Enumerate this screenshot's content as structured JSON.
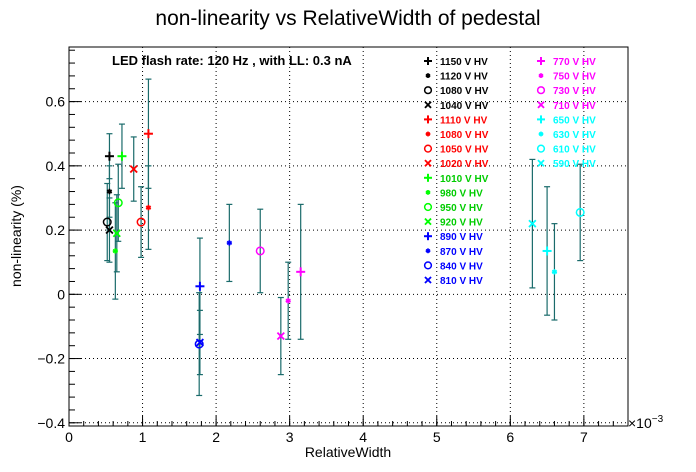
{
  "chart_data": {
    "type": "scatter",
    "title": "non-linearity vs RelativeWidth of pedestal",
    "xlabel": "RelativeWidth",
    "ylabel": "non-linearity (%)",
    "x_multiplier_label": "×10",
    "x_multiplier_exp": "−3",
    "xlim": [
      0,
      0.0076
    ],
    "ylim": [
      -0.41,
      0.77
    ],
    "x_ticks": [
      0,
      0.001,
      0.002,
      0.003,
      0.004,
      0.005,
      0.006,
      0.007
    ],
    "x_tick_labels": [
      "0",
      "1",
      "2",
      "3",
      "4",
      "5",
      "6",
      "7"
    ],
    "y_ticks": [
      -0.4,
      -0.2,
      0,
      0.2,
      0.4,
      0.6
    ],
    "y_tick_labels": [
      "−0.4",
      "−0.2",
      "0",
      "0.2",
      "0.4",
      "0.6"
    ],
    "grid": true,
    "annotation": "LED flash rate: 120 Hz , with LL: 0.3 nA",
    "error_bar_color": "#1a6b6b",
    "series": [
      {
        "name": "1150 V HV",
        "color": "#000000",
        "marker": "+",
        "x": 0.00055,
        "y": 0.43,
        "err": 0.07
      },
      {
        "name": "1120 V HV",
        "color": "#000000",
        "marker": "*",
        "x": 0.00055,
        "y": 0.32,
        "err": 0.08
      },
      {
        "name": "1080 V HV",
        "color": "#000000",
        "marker": "o",
        "x": 0.00052,
        "y": 0.225,
        "err": 0.12
      },
      {
        "name": "1040 V HV",
        "color": "#000000",
        "marker": "x",
        "x": 0.00055,
        "y": 0.2,
        "err": 0.1
      },
      {
        "name": "1110 V HV",
        "color": "#ff0000",
        "marker": "+",
        "x": 0.00108,
        "y": 0.5,
        "err": 0.17
      },
      {
        "name": "1080 V HV",
        "color": "#ff0000",
        "marker": "*",
        "x": 0.00108,
        "y": 0.27,
        "err": 0.13
      },
      {
        "name": "1050 V HV",
        "color": "#ff0000",
        "marker": "o",
        "x": 0.00098,
        "y": 0.225,
        "err": 0.11
      },
      {
        "name": "1020 V HV",
        "color": "#ff0000",
        "marker": "x",
        "x": 0.00088,
        "y": 0.39,
        "err": 0.1
      },
      {
        "name": "1010 V HV",
        "color": "#00ff00",
        "marker": "+",
        "x": 0.00072,
        "y": 0.43,
        "err": 0.1
      },
      {
        "name": "980 V HV",
        "color": "#00ff00",
        "marker": "*",
        "x": 0.00063,
        "y": 0.135,
        "err": 0.15
      },
      {
        "name": "950 V HV",
        "color": "#00ff00",
        "marker": "o",
        "x": 0.00067,
        "y": 0.285,
        "err": 0.12
      },
      {
        "name": "920 V HV",
        "color": "#00ff00",
        "marker": "x",
        "x": 0.00065,
        "y": 0.19,
        "err": 0.12
      },
      {
        "name": "890 V HV",
        "color": "#0000ff",
        "marker": "+",
        "x": 0.00178,
        "y": 0.025,
        "err": 0.15
      },
      {
        "name": "870 V HV",
        "color": "#0000ff",
        "marker": "*",
        "x": 0.00218,
        "y": 0.16,
        "err": 0.12
      },
      {
        "name": "840 V HV",
        "color": "#0000ff",
        "marker": "o",
        "x": 0.00177,
        "y": -0.155,
        "err": 0.16
      },
      {
        "name": "810 V HV",
        "color": "#0000ff",
        "marker": "x",
        "x": 0.00178,
        "y": -0.15,
        "err": 0.1
      },
      {
        "name": "770 V HV",
        "color": "#ff00ff",
        "marker": "+",
        "x": 0.00315,
        "y": 0.07,
        "err": 0.21
      },
      {
        "name": "750 V HV",
        "color": "#ff00ff",
        "marker": "*",
        "x": 0.00298,
        "y": -0.02,
        "err": 0.12
      },
      {
        "name": "730 V HV",
        "color": "#ff00ff",
        "marker": "o",
        "x": 0.0026,
        "y": 0.135,
        "err": 0.13
      },
      {
        "name": "710 V HV",
        "color": "#ff00ff",
        "marker": "x",
        "x": 0.00288,
        "y": -0.13,
        "err": 0.12
      },
      {
        "name": "650 V HV",
        "color": "#00ffff",
        "marker": "+",
        "x": 0.0065,
        "y": 0.135,
        "err": 0.2
      },
      {
        "name": "630 V HV",
        "color": "#00ffff",
        "marker": "*",
        "x": 0.0066,
        "y": 0.07,
        "err": 0.15
      },
      {
        "name": "610 V HV",
        "color": "#00ffff",
        "marker": "o",
        "x": 0.00695,
        "y": 0.255,
        "err": 0.15
      },
      {
        "name": "590 V HV",
        "color": "#00ffff",
        "marker": "x",
        "x": 0.0063,
        "y": 0.22,
        "err": 0.2
      }
    ]
  }
}
